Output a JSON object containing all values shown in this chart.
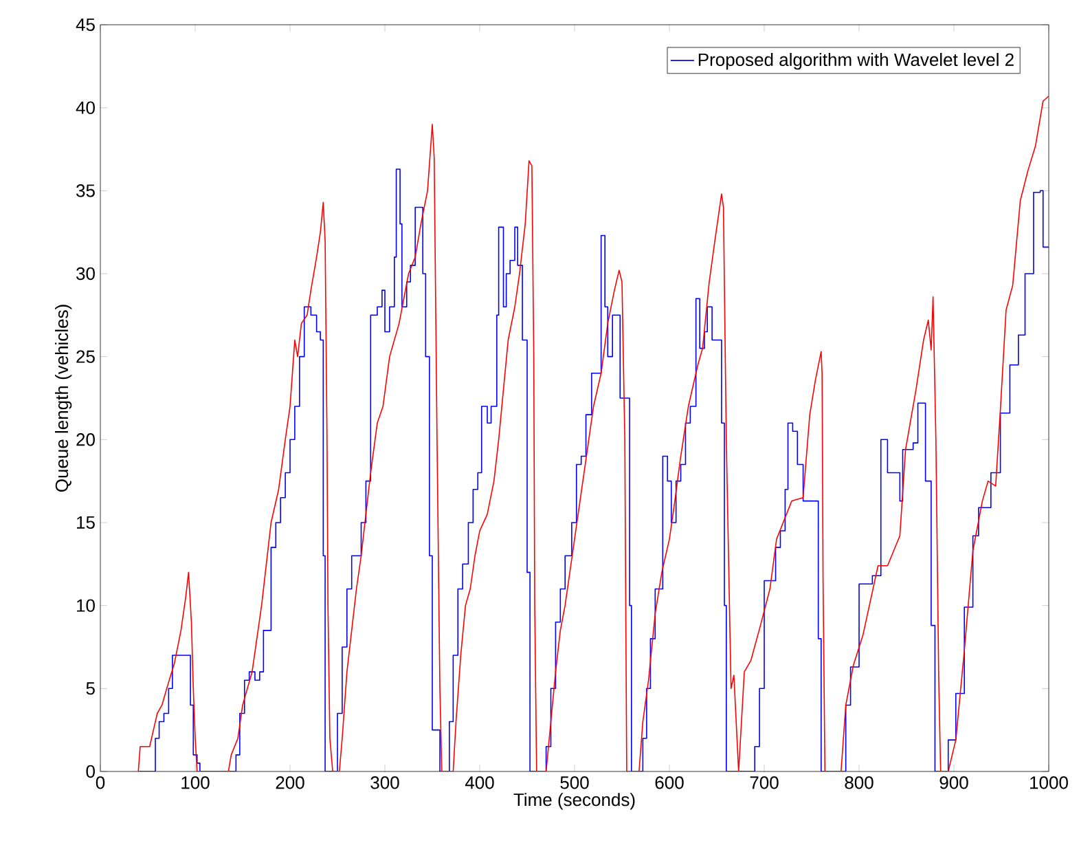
{
  "chart_data": {
    "type": "line",
    "xlabel": "Time (seconds)",
    "ylabel": "Queue length (vehicles)",
    "xlim": [
      0,
      1000
    ],
    "ylim": [
      0,
      45
    ],
    "xticks": [
      0,
      100,
      200,
      300,
      400,
      500,
      600,
      700,
      800,
      900,
      1000
    ],
    "yticks": [
      0,
      5,
      10,
      15,
      20,
      25,
      30,
      35,
      40,
      45
    ],
    "legend": "top right",
    "series": [
      {
        "name": "Proposed algorithm with Wavelet level 2",
        "type": "step",
        "color": "#0000ff",
        "x": [
          40,
          55,
          58,
          62,
          67,
          72,
          76,
          90,
          95,
          98,
          102,
          105,
          140,
          143,
          147,
          152,
          157,
          163,
          168,
          172,
          180,
          185,
          190,
          195,
          200,
          205,
          210,
          215,
          222,
          228,
          232,
          235,
          237,
          245,
          250,
          255,
          260,
          265,
          270,
          275,
          280,
          285,
          292,
          297,
          300,
          305,
          310,
          312,
          316,
          318,
          323,
          327,
          332,
          338,
          340,
          343,
          347,
          350,
          355,
          358,
          365,
          368,
          372,
          377,
          382,
          388,
          393,
          398,
          402,
          408,
          412,
          418,
          420,
          425,
          428,
          432,
          437,
          440,
          445,
          450,
          453,
          465,
          470,
          475,
          480,
          485,
          490,
          497,
          502,
          507,
          512,
          518,
          525,
          528,
          532,
          535,
          540,
          545,
          548,
          555,
          558,
          560,
          568,
          572,
          576,
          580,
          585,
          590,
          593,
          598,
          602,
          607,
          612,
          617,
          622,
          628,
          632,
          637,
          640,
          645,
          650,
          655,
          658,
          660,
          686,
          690,
          695,
          700,
          708,
          712,
          717,
          722,
          725,
          730,
          735,
          741,
          748,
          755,
          757,
          760,
          783,
          786,
          791,
          800,
          814,
          823,
          830,
          843,
          846,
          857,
          862,
          870,
          876,
          880,
          894,
          902,
          911,
          920,
          926,
          939,
          949,
          959,
          968,
          975,
          984,
          991,
          994,
          1000
        ],
        "values": [
          0,
          0,
          2,
          3,
          3.5,
          5,
          7,
          7,
          4,
          1,
          0.5,
          0,
          0,
          1,
          3.5,
          5.5,
          6,
          5.5,
          6,
          8.5,
          13.5,
          15,
          16.5,
          18,
          20,
          22,
          25,
          28,
          27.5,
          26.5,
          26,
          13,
          0,
          0,
          3.5,
          7.5,
          11,
          13,
          13,
          15,
          17.5,
          27.5,
          28,
          29,
          26.5,
          28,
          31,
          36.3,
          33,
          28,
          29.5,
          30.5,
          34,
          34,
          30,
          25,
          13,
          2.5,
          2.5,
          0,
          0,
          3,
          7,
          11,
          12.5,
          15,
          17,
          18,
          22,
          21,
          22,
          27.5,
          32.8,
          28,
          30,
          30.8,
          32.8,
          30.5,
          26,
          12,
          0,
          0,
          1.5,
          5,
          9,
          11,
          13,
          15,
          18.5,
          19,
          21.5,
          24,
          24,
          32.3,
          28,
          25,
          27.5,
          27.5,
          22.5,
          22.5,
          10,
          0,
          0,
          2,
          5,
          8,
          11,
          11,
          19,
          17.5,
          15,
          17.5,
          18.5,
          21,
          22,
          28.5,
          25.5,
          26.5,
          28,
          26,
          26,
          21,
          10,
          0,
          0,
          1.5,
          5,
          11.5,
          11.5,
          13.5,
          14.5,
          17,
          21,
          20.5,
          18.5,
          16.3,
          16.3,
          16.3,
          8,
          0,
          0,
          4,
          6.3,
          11.3,
          11.8,
          20,
          18,
          16.3,
          19.4,
          19.8,
          22.2,
          17.5,
          8.8,
          0,
          1.9,
          4.7,
          9.9,
          14.2,
          15.9,
          18,
          21.6,
          24.5,
          26.3,
          30,
          34.9,
          35,
          31.6,
          31.6
        ]
      },
      {
        "color": "#ff0000",
        "x": [
          40,
          42,
          52,
          56,
          60,
          65,
          70,
          78,
          85,
          90,
          93,
          96,
          98,
          100,
          102,
          135,
          138,
          145,
          150,
          160,
          170,
          180,
          188,
          195,
          200,
          205,
          208,
          212,
          218,
          222,
          228,
          232,
          235,
          237,
          239,
          240,
          242,
          245,
          252,
          255,
          260,
          270,
          275,
          285,
          292,
          298,
          305,
          315,
          320,
          325,
          332,
          338,
          345,
          350,
          352,
          355,
          358,
          360,
          372,
          375,
          380,
          385,
          390,
          395,
          400,
          408,
          415,
          420,
          425,
          430,
          437,
          442,
          448,
          452,
          455,
          457,
          458,
          460,
          470,
          475,
          480,
          485,
          490,
          495,
          500,
          505,
          510,
          515,
          520,
          528,
          535,
          542,
          547,
          550,
          553,
          555,
          568,
          572,
          578,
          585,
          592,
          600,
          605,
          612,
          620,
          630,
          635,
          642,
          648,
          655,
          657,
          660,
          665,
          668,
          673,
          679,
          686,
          696,
          706,
          713,
          729,
          741,
          748,
          754,
          760,
          761,
          762,
          764,
          781,
          786,
          794,
          804,
          820,
          830,
          843,
          849,
          860,
          868,
          873,
          876,
          878,
          881,
          884,
          886,
          894,
          902,
          911,
          920,
          930,
          936,
          944,
          949,
          955,
          962,
          970,
          978,
          986,
          994,
          1000
        ],
        "values": [
          0,
          1.5,
          1.5,
          2.5,
          3.5,
          4,
          5,
          6.5,
          8.5,
          10.5,
          12,
          9,
          5,
          2,
          0,
          0,
          1,
          2,
          4,
          6,
          10,
          15,
          17,
          20,
          22,
          26,
          25,
          27,
          27.5,
          29,
          31,
          32.5,
          34.3,
          32,
          20,
          10,
          2,
          0,
          0,
          2,
          6,
          11,
          13,
          18,
          21,
          22,
          25,
          27,
          28.5,
          30,
          31,
          33,
          35,
          39,
          37,
          20,
          5,
          0,
          0,
          3,
          7,
          10,
          11,
          13,
          14.5,
          15.5,
          17.5,
          20,
          23,
          26,
          28,
          30,
          33,
          36.8,
          36.5,
          25,
          10,
          0,
          0,
          3,
          6,
          8.5,
          10,
          12,
          14,
          16,
          18,
          20,
          22,
          24,
          27,
          29,
          30.2,
          29.5,
          20,
          0,
          0,
          3,
          5.5,
          9.5,
          12,
          14,
          16,
          19,
          22,
          24.5,
          25.5,
          29.5,
          32,
          34.8,
          34,
          20,
          5,
          5.8,
          0,
          6,
          6.7,
          8.8,
          11,
          14,
          16.3,
          16.5,
          21.5,
          23.6,
          25.3,
          24,
          11.8,
          0,
          0,
          4,
          6.4,
          8.2,
          12.4,
          12.4,
          14.2,
          19.4,
          23,
          26,
          27.2,
          25.4,
          28.6,
          20,
          5.5,
          0,
          0,
          1.9,
          7.3,
          13.3,
          16.3,
          17.5,
          17.2,
          21.8,
          27.8,
          29.3,
          34.4,
          36.2,
          37.7,
          40.4,
          40.7
        ]
      }
    ]
  }
}
